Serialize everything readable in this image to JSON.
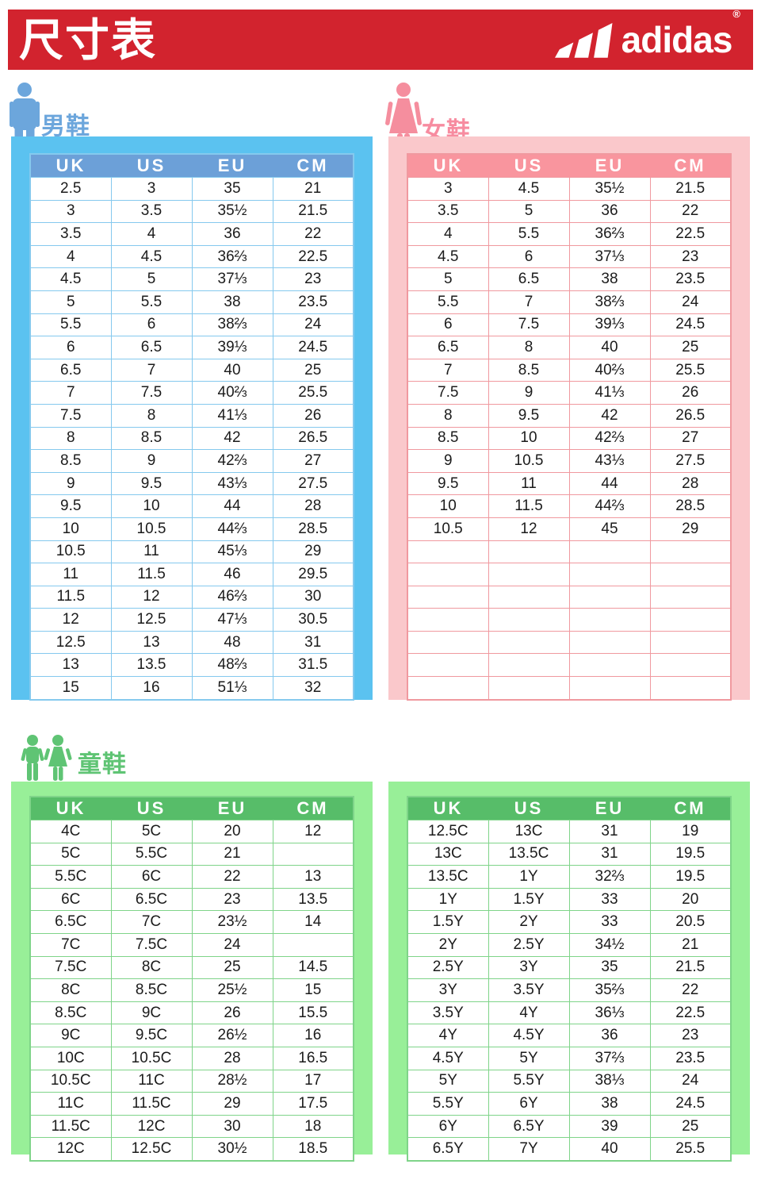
{
  "banner": {
    "title": "尺寸表",
    "brand": "adidas",
    "reg": "®"
  },
  "columns": [
    "UK",
    "US",
    "EU",
    "CM"
  ],
  "men": {
    "label": "男鞋",
    "rows": [
      [
        "2.5",
        "3",
        "35",
        "21"
      ],
      [
        "3",
        "3.5",
        "35½",
        "21.5"
      ],
      [
        "3.5",
        "4",
        "36",
        "22"
      ],
      [
        "4",
        "4.5",
        "36⅔",
        "22.5"
      ],
      [
        "4.5",
        "5",
        "37⅓",
        "23"
      ],
      [
        "5",
        "5.5",
        "38",
        "23.5"
      ],
      [
        "5.5",
        "6",
        "38⅔",
        "24"
      ],
      [
        "6",
        "6.5",
        "39⅓",
        "24.5"
      ],
      [
        "6.5",
        "7",
        "40",
        "25"
      ],
      [
        "7",
        "7.5",
        "40⅔",
        "25.5"
      ],
      [
        "7.5",
        "8",
        "41⅓",
        "26"
      ],
      [
        "8",
        "8.5",
        "42",
        "26.5"
      ],
      [
        "8.5",
        "9",
        "42⅔",
        "27"
      ],
      [
        "9",
        "9.5",
        "43⅓",
        "27.5"
      ],
      [
        "9.5",
        "10",
        "44",
        "28"
      ],
      [
        "10",
        "10.5",
        "44⅔",
        "28.5"
      ],
      [
        "10.5",
        "11",
        "45⅓",
        "29"
      ],
      [
        "11",
        "11.5",
        "46",
        "29.5"
      ],
      [
        "11.5",
        "12",
        "46⅔",
        "30"
      ],
      [
        "12",
        "12.5",
        "47⅓",
        "30.5"
      ],
      [
        "12.5",
        "13",
        "48",
        "31"
      ],
      [
        "13",
        "13.5",
        "48⅔",
        "31.5"
      ],
      [
        "15",
        "16",
        "51⅓",
        "32"
      ]
    ]
  },
  "women": {
    "label": "女鞋",
    "rows": [
      [
        "3",
        "4.5",
        "35½",
        "21.5"
      ],
      [
        "3.5",
        "5",
        "36",
        "22"
      ],
      [
        "4",
        "5.5",
        "36⅔",
        "22.5"
      ],
      [
        "4.5",
        "6",
        "37⅓",
        "23"
      ],
      [
        "5",
        "6.5",
        "38",
        "23.5"
      ],
      [
        "5.5",
        "7",
        "38⅔",
        "24"
      ],
      [
        "6",
        "7.5",
        "39⅓",
        "24.5"
      ],
      [
        "6.5",
        "8",
        "40",
        "25"
      ],
      [
        "7",
        "8.5",
        "40⅔",
        "25.5"
      ],
      [
        "7.5",
        "9",
        "41⅓",
        "26"
      ],
      [
        "8",
        "9.5",
        "42",
        "26.5"
      ],
      [
        "8.5",
        "10",
        "42⅔",
        "27"
      ],
      [
        "9",
        "10.5",
        "43⅓",
        "27.5"
      ],
      [
        "9.5",
        "11",
        "44",
        "28"
      ],
      [
        "10",
        "11.5",
        "44⅔",
        "28.5"
      ],
      [
        "10.5",
        "12",
        "45",
        "29"
      ],
      [
        "",
        "",
        "",
        ""
      ],
      [
        "",
        "",
        "",
        ""
      ],
      [
        "",
        "",
        "",
        ""
      ],
      [
        "",
        "",
        "",
        ""
      ],
      [
        "",
        "",
        "",
        ""
      ],
      [
        "",
        "",
        "",
        ""
      ],
      [
        "",
        "",
        "",
        ""
      ]
    ]
  },
  "kids": {
    "label": "童鞋",
    "left_rows": [
      [
        "4C",
        "5C",
        "20",
        "12"
      ],
      [
        "5C",
        "5.5C",
        "21",
        ""
      ],
      [
        "5.5C",
        "6C",
        "22",
        "13"
      ],
      [
        "6C",
        "6.5C",
        "23",
        "13.5"
      ],
      [
        "6.5C",
        "7C",
        "23½",
        "14"
      ],
      [
        "7C",
        "7.5C",
        "24",
        ""
      ],
      [
        "7.5C",
        "8C",
        "25",
        "14.5"
      ],
      [
        "8C",
        "8.5C",
        "25½",
        "15"
      ],
      [
        "8.5C",
        "9C",
        "26",
        "15.5"
      ],
      [
        "9C",
        "9.5C",
        "26½",
        "16"
      ],
      [
        "10C",
        "10.5C",
        "28",
        "16.5"
      ],
      [
        "10.5C",
        "11C",
        "28½",
        "17"
      ],
      [
        "11C",
        "11.5C",
        "29",
        "17.5"
      ],
      [
        "11.5C",
        "12C",
        "30",
        "18"
      ],
      [
        "12C",
        "12.5C",
        "30½",
        "18.5"
      ]
    ],
    "right_rows": [
      [
        "12.5C",
        "13C",
        "31",
        "19"
      ],
      [
        "13C",
        "13.5C",
        "31",
        "19.5"
      ],
      [
        "13.5C",
        "1Y",
        "32⅔",
        "19.5"
      ],
      [
        "1Y",
        "1.5Y",
        "33",
        "20"
      ],
      [
        "1.5Y",
        "2Y",
        "33",
        "20.5"
      ],
      [
        "2Y",
        "2.5Y",
        "34½",
        "21"
      ],
      [
        "2.5Y",
        "3Y",
        "35",
        "21.5"
      ],
      [
        "3Y",
        "3.5Y",
        "35⅔",
        "22"
      ],
      [
        "3.5Y",
        "4Y",
        "36⅓",
        "22.5"
      ],
      [
        "4Y",
        "4.5Y",
        "36",
        "23"
      ],
      [
        "4.5Y",
        "5Y",
        "37⅔",
        "23.5"
      ],
      [
        "5Y",
        "5.5Y",
        "38⅓",
        "24"
      ],
      [
        "5.5Y",
        "6Y",
        "38",
        "24.5"
      ],
      [
        "6Y",
        "6.5Y",
        "39",
        "25"
      ],
      [
        "6.5Y",
        "7Y",
        "40",
        "25.5"
      ]
    ]
  },
  "colors": {
    "banner_red": "#d2232e",
    "men_frame": "#5bc2f0",
    "men_header": "#6ca0d8",
    "women_frame": "#fac8cb",
    "women_header": "#f9959e",
    "kids_frame": "#98ef98",
    "kids_header": "#57bd69"
  }
}
